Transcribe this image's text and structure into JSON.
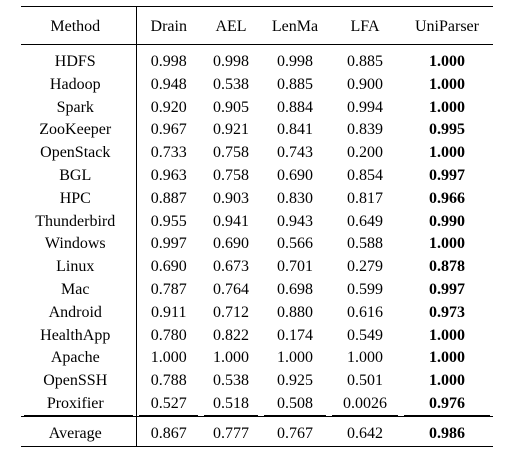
{
  "table": {
    "headers": [
      "Method",
      "Drain",
      "AEL",
      "LenMa",
      "LFA",
      "UniParser"
    ],
    "rows": [
      {
        "method": "HDFS",
        "drain": "0.998",
        "ael": "0.998",
        "lenma": "0.998",
        "lfa": "0.885",
        "uniparser": "1.000"
      },
      {
        "method": "Hadoop",
        "drain": "0.948",
        "ael": "0.538",
        "lenma": "0.885",
        "lfa": "0.900",
        "uniparser": "1.000"
      },
      {
        "method": "Spark",
        "drain": "0.920",
        "ael": "0.905",
        "lenma": "0.884",
        "lfa": "0.994",
        "uniparser": "1.000"
      },
      {
        "method": "ZooKeeper",
        "drain": "0.967",
        "ael": "0.921",
        "lenma": "0.841",
        "lfa": "0.839",
        "uniparser": "0.995"
      },
      {
        "method": "OpenStack",
        "drain": "0.733",
        "ael": "0.758",
        "lenma": "0.743",
        "lfa": "0.200",
        "uniparser": "1.000"
      },
      {
        "method": "BGL",
        "drain": "0.963",
        "ael": "0.758",
        "lenma": "0.690",
        "lfa": "0.854",
        "uniparser": "0.997"
      },
      {
        "method": "HPC",
        "drain": "0.887",
        "ael": "0.903",
        "lenma": "0.830",
        "lfa": "0.817",
        "uniparser": "0.966"
      },
      {
        "method": "Thunderbird",
        "drain": "0.955",
        "ael": "0.941",
        "lenma": "0.943",
        "lfa": "0.649",
        "uniparser": "0.990"
      },
      {
        "method": "Windows",
        "drain": "0.997",
        "ael": "0.690",
        "lenma": "0.566",
        "lfa": "0.588",
        "uniparser": "1.000"
      },
      {
        "method": "Linux",
        "drain": "0.690",
        "ael": "0.673",
        "lenma": "0.701",
        "lfa": "0.279",
        "uniparser": "0.878"
      },
      {
        "method": "Mac",
        "drain": "0.787",
        "ael": "0.764",
        "lenma": "0.698",
        "lfa": "0.599",
        "uniparser": "0.997"
      },
      {
        "method": "Android",
        "drain": "0.911",
        "ael": "0.712",
        "lenma": "0.880",
        "lfa": "0.616",
        "uniparser": "0.973"
      },
      {
        "method": "HealthApp",
        "drain": "0.780",
        "ael": "0.822",
        "lenma": "0.174",
        "lfa": "0.549",
        "uniparser": "1.000"
      },
      {
        "method": "Apache",
        "drain": "1.000",
        "ael": "1.000",
        "lenma": "1.000",
        "lfa": "1.000",
        "uniparser": "1.000"
      },
      {
        "method": "OpenSSH",
        "drain": "0.788",
        "ael": "0.538",
        "lenma": "0.925",
        "lfa": "0.501",
        "uniparser": "1.000"
      },
      {
        "method": "Proxifier",
        "drain": "0.527",
        "ael": "0.518",
        "lenma": "0.508",
        "lfa": "0.0026",
        "uniparser": "0.976"
      }
    ],
    "average": {
      "method": "Average",
      "drain": "0.867",
      "ael": "0.777",
      "lenma": "0.767",
      "lfa": "0.642",
      "uniparser": "0.986"
    }
  }
}
